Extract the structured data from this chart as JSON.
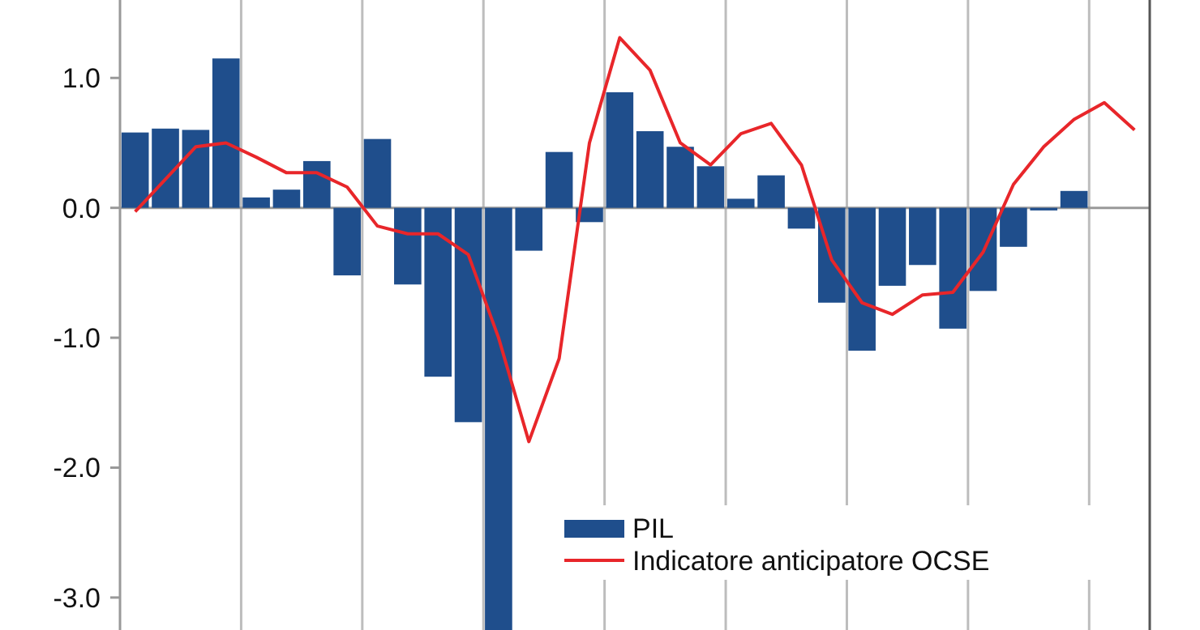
{
  "chart_data": {
    "type": "bar",
    "categories": [
      null,
      null,
      null,
      null,
      null,
      null,
      null,
      null,
      null,
      null,
      null,
      null,
      null,
      null,
      null,
      null,
      null,
      null,
      null,
      null,
      null,
      null,
      null,
      null,
      null,
      null,
      null,
      null,
      null,
      null,
      null,
      null,
      null,
      null
    ],
    "series": [
      {
        "name": "PIL",
        "color": "#1f4e8c",
        "values": [
          0.58,
          0.61,
          0.6,
          1.15,
          0.08,
          0.14,
          0.36,
          -0.52,
          0.53,
          -0.59,
          -1.3,
          -1.65,
          -3.25,
          -0.33,
          0.43,
          -0.11,
          0.89,
          0.59,
          0.47,
          0.32,
          0.07,
          0.25,
          -0.16,
          -0.73,
          -1.1,
          -0.6,
          -0.44,
          -0.93,
          -0.64,
          -0.3,
          -0.02,
          0.13,
          null,
          null
        ]
      },
      {
        "name": "Indicatore anticipatore OCSE",
        "type": "line",
        "color": "#e8262a",
        "values": [
          -0.03,
          0.22,
          0.47,
          0.5,
          0.39,
          0.27,
          0.27,
          0.16,
          -0.14,
          -0.2,
          -0.2,
          -0.36,
          -1.0,
          -1.8,
          -1.16,
          0.5,
          1.31,
          1.06,
          0.5,
          0.33,
          0.57,
          0.65,
          0.33,
          -0.4,
          -0.73,
          -0.82,
          -0.67,
          -0.65,
          -0.34,
          0.18,
          0.47,
          0.68,
          0.81,
          0.6
        ]
      }
    ],
    "ylim": [
      -3.25,
      1.6
    ],
    "yticks": [
      {
        "value": 1,
        "label": "1.0"
      },
      {
        "value": 0,
        "label": "0.0"
      },
      {
        "value": -1,
        "label": "-1.0"
      },
      {
        "value": -2,
        "label": "-2.0"
      },
      {
        "value": -3,
        "label": "-3.0"
      }
    ],
    "grid": "x",
    "legend": "bottom right",
    "marker": "none",
    "line_style": "solid"
  }
}
